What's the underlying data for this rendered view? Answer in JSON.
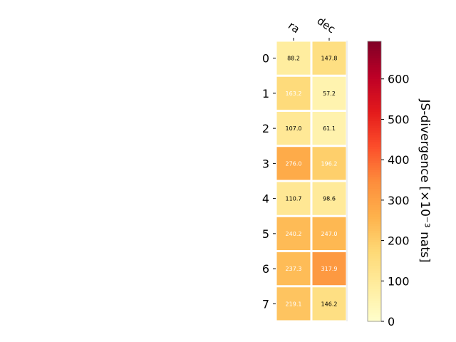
{
  "chart_data": {
    "type": "heatmap",
    "columns": [
      "ra",
      "dec"
    ],
    "rows": [
      "0",
      "1",
      "2",
      "3",
      "4",
      "5",
      "6",
      "7"
    ],
    "values": [
      [
        88.2,
        147.8
      ],
      [
        163.2,
        57.2
      ],
      [
        107.0,
        61.1
      ],
      [
        276.0,
        196.2
      ],
      [
        110.7,
        98.6
      ],
      [
        240.2,
        247.0
      ],
      [
        237.3,
        317.9
      ],
      [
        219.1,
        146.2
      ]
    ],
    "cell_labels": [
      [
        "88.2",
        "147.8"
      ],
      [
        "163.2",
        "57.2"
      ],
      [
        "107.0",
        "61.1"
      ],
      [
        "276.0",
        "196.2"
      ],
      [
        "110.7",
        "98.6"
      ],
      [
        "240.2",
        "247.0"
      ],
      [
        "237.3",
        "317.9"
      ],
      [
        "219.1",
        "146.2"
      ]
    ],
    "colorbar": {
      "label": "JS-divergence [×10⁻³ nats]",
      "range": [
        0,
        693
      ],
      "ticks": [
        0,
        100,
        200,
        300,
        400,
        500,
        600
      ],
      "tick_labels": [
        "0",
        "100",
        "200",
        "300",
        "400",
        "500",
        "600"
      ],
      "colormap": "YlOrRd"
    },
    "label_colors": {
      "dark": "#000000",
      "light": "#ffffff"
    },
    "grid": false
  }
}
